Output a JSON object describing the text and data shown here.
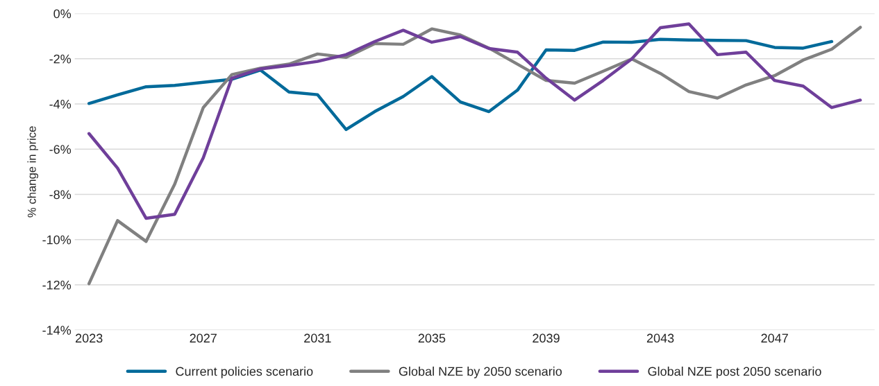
{
  "chart_data": {
    "type": "line",
    "ylabel": "% change in price",
    "x": [
      2023,
      2024,
      2025,
      2026,
      2027,
      2028,
      2029,
      2030,
      2031,
      2032,
      2033,
      2034,
      2035,
      2036,
      2037,
      2038,
      2039,
      2040,
      2041,
      2042,
      2043,
      2044,
      2045,
      2046,
      2047,
      2048,
      2049,
      2050
    ],
    "xlim": [
      2022.5,
      2050.5
    ],
    "xticks": [
      2023,
      2027,
      2031,
      2035,
      2039,
      2043,
      2047
    ],
    "ylim": [
      -14,
      0
    ],
    "yticks": [
      {
        "value": -14,
        "label": "-14%"
      },
      {
        "value": -12,
        "label": "-12%"
      },
      {
        "value": -10,
        "label": "-10%"
      },
      {
        "value": -8,
        "label": "-8%"
      },
      {
        "value": -6,
        "label": "-6%"
      },
      {
        "value": -4,
        "label": "-4%"
      },
      {
        "value": -2,
        "label": "-2%"
      },
      {
        "value": 0,
        "label": "0%"
      }
    ],
    "grid": "y",
    "legend": "bottom",
    "marker": "none",
    "line_style": "solid",
    "series": [
      {
        "name": "Current policies scenario",
        "color": "#006a9a",
        "values": [
          -3.98,
          -3.6,
          -3.24,
          -3.18,
          -3.04,
          -2.91,
          -2.5,
          -3.47,
          -3.59,
          -5.13,
          -4.34,
          -3.67,
          -2.79,
          -3.91,
          -4.34,
          -3.39,
          -1.61,
          -1.63,
          -1.26,
          -1.27,
          -1.14,
          -1.17,
          -1.19,
          -1.2,
          -1.5,
          -1.53,
          -1.24,
          null
        ]
      },
      {
        "name": "Global NZE by 2050 scenario",
        "color": "#808080",
        "values": [
          -11.95,
          -9.16,
          -10.08,
          -7.55,
          -4.16,
          -2.7,
          -2.42,
          -2.24,
          -1.79,
          -1.94,
          -1.33,
          -1.36,
          -0.68,
          -0.95,
          -1.53,
          -2.24,
          -2.96,
          -3.08,
          -2.55,
          -2.01,
          -2.65,
          -3.45,
          -3.74,
          -3.16,
          -2.75,
          -2.06,
          -1.58,
          -0.61
        ]
      },
      {
        "name": "Global NZE post 2050 scenario",
        "color": "#6f3f9a",
        "values": [
          -5.31,
          -6.84,
          -9.06,
          -8.88,
          -6.38,
          -2.86,
          -2.45,
          -2.3,
          -2.12,
          -1.82,
          -1.24,
          -0.74,
          -1.27,
          -1.02,
          -1.55,
          -1.71,
          -2.86,
          -3.83,
          -2.96,
          -2.01,
          -0.63,
          -0.46,
          -1.82,
          -1.71,
          -2.96,
          -3.21,
          -4.16,
          -3.83
        ]
      }
    ]
  }
}
